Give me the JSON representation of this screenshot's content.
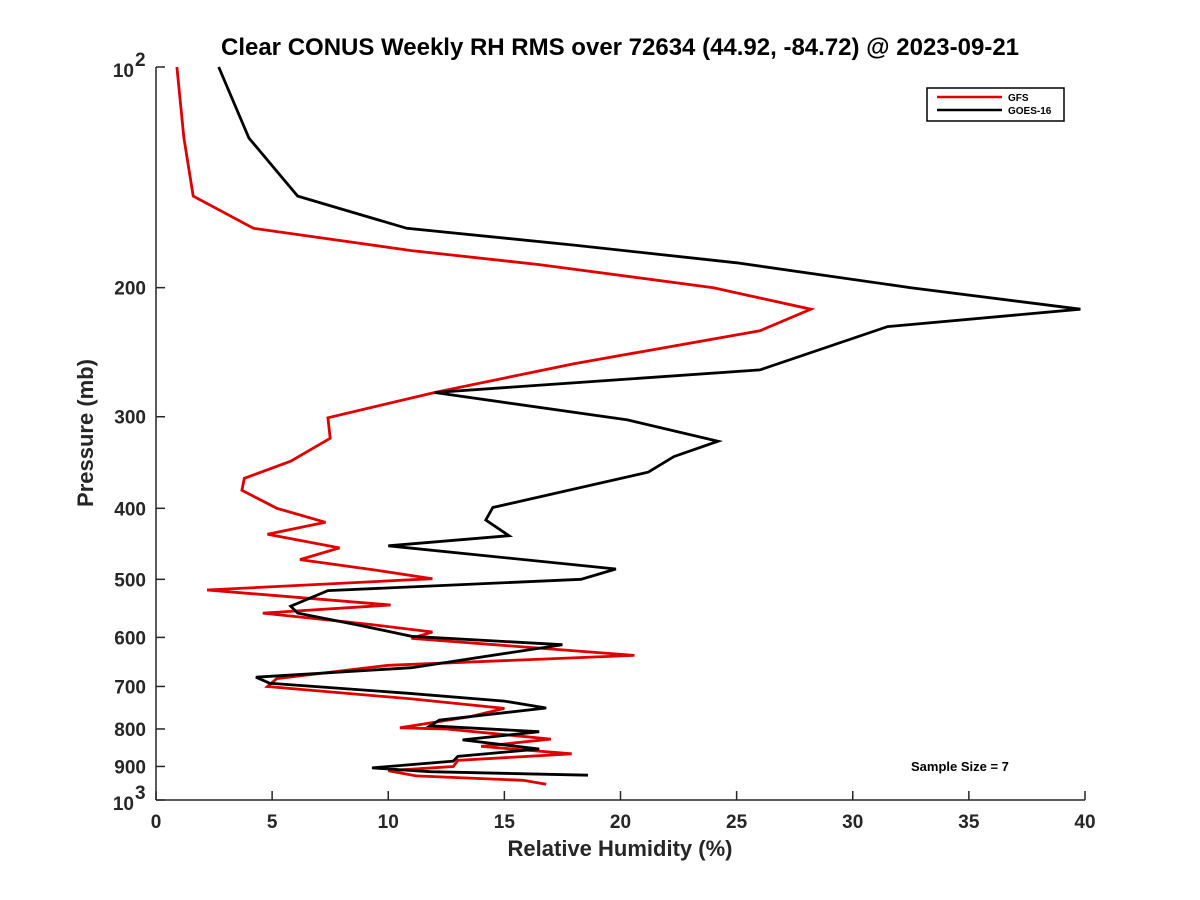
{
  "chart_data": {
    "type": "line",
    "title": "Clear CONUS Weekly RH RMS over 72634 (44.92, -84.72) @ 2023-09-21",
    "xlabel": "Relative Humidity (%)",
    "ylabel": "Pressure (mb)",
    "xlim": [
      0,
      40
    ],
    "ylim": [
      100,
      1000
    ],
    "yscale": "log",
    "y_reversed": true,
    "xticks": [
      0,
      5,
      10,
      15,
      20,
      25,
      30,
      35,
      40
    ],
    "yticks": [
      {
        "value": 100,
        "label": "10",
        "exp": "2"
      },
      {
        "value": 200,
        "label": "200"
      },
      {
        "value": 300,
        "label": "300"
      },
      {
        "value": 400,
        "label": "400"
      },
      {
        "value": 500,
        "label": "500"
      },
      {
        "value": 600,
        "label": "600"
      },
      {
        "value": 700,
        "label": "700"
      },
      {
        "value": 800,
        "label": "800"
      },
      {
        "value": 900,
        "label": "900"
      },
      {
        "value": 1000,
        "label": "10",
        "exp": "3"
      }
    ],
    "legend_position": "top-right",
    "annotation": "Sample Size = 7",
    "series": [
      {
        "name": "GFS",
        "color": "#e00000",
        "points": [
          [
            0.9,
            100
          ],
          [
            1.2,
            125
          ],
          [
            1.6,
            150
          ],
          [
            4.2,
            166
          ],
          [
            11,
            178
          ],
          [
            16.5,
            186
          ],
          [
            24,
            200
          ],
          [
            28.2,
            214
          ],
          [
            26,
            229
          ],
          [
            18,
            254
          ],
          [
            12,
            278
          ],
          [
            7.4,
            301
          ],
          [
            7.5,
            321
          ],
          [
            5.8,
            345
          ],
          [
            3.8,
            364
          ],
          [
            3.7,
            378
          ],
          [
            5.2,
            400
          ],
          [
            7.3,
            418
          ],
          [
            4.8,
            434
          ],
          [
            7.9,
            453
          ],
          [
            6.2,
            470
          ],
          [
            9.5,
            486
          ],
          [
            11.9,
            499
          ],
          [
            2.2,
            517
          ],
          [
            10.1,
            542
          ],
          [
            4.6,
            556
          ],
          [
            9.2,
            576
          ],
          [
            11.9,
            590
          ],
          [
            11,
            602
          ],
          [
            20.6,
            635
          ],
          [
            10,
            655
          ],
          [
            5.2,
            683
          ],
          [
            4.8,
            700
          ],
          [
            11,
            728
          ],
          [
            15,
            750
          ],
          [
            13.5,
            770
          ],
          [
            10.5,
            797
          ],
          [
            12.5,
            800
          ],
          [
            17,
            826
          ],
          [
            14,
            845
          ],
          [
            17.9,
            865
          ],
          [
            13,
            883
          ],
          [
            12.8,
            900
          ],
          [
            10,
            912
          ],
          [
            11.2,
            927
          ],
          [
            15.8,
            940
          ],
          [
            16.8,
            952
          ]
        ]
      },
      {
        "name": "GOES-16",
        "color": "#000000",
        "points": [
          [
            2.7,
            100
          ],
          [
            4,
            125
          ],
          [
            6.1,
            150
          ],
          [
            10.8,
            166
          ],
          [
            18,
            175
          ],
          [
            25,
            185
          ],
          [
            32.5,
            200
          ],
          [
            39.8,
            214
          ],
          [
            31.5,
            226
          ],
          [
            26,
            259
          ],
          [
            12,
            278
          ],
          [
            20.3,
            303
          ],
          [
            24.2,
            324
          ],
          [
            22.3,
            340
          ],
          [
            21.2,
            357
          ],
          [
            14.5,
            399
          ],
          [
            14.2,
            415
          ],
          [
            15.2,
            436
          ],
          [
            10,
            450
          ],
          [
            19.8,
            484
          ],
          [
            18.3,
            500
          ],
          [
            7.4,
            518
          ],
          [
            5.8,
            544
          ],
          [
            6.1,
            556
          ],
          [
            8.8,
            578
          ],
          [
            11,
            598
          ],
          [
            17.5,
            614
          ],
          [
            11,
            660
          ],
          [
            4.3,
            680
          ],
          [
            4.9,
            693
          ],
          [
            10.8,
            715
          ],
          [
            15,
            733
          ],
          [
            16.8,
            749
          ],
          [
            12.2,
            778
          ],
          [
            11.8,
            792
          ],
          [
            16.5,
            807
          ],
          [
            13.2,
            828
          ],
          [
            16.5,
            852
          ],
          [
            13,
            872
          ],
          [
            12.8,
            885
          ],
          [
            9.3,
            904
          ],
          [
            11.8,
            915
          ],
          [
            18.6,
            925
          ]
        ]
      }
    ]
  }
}
